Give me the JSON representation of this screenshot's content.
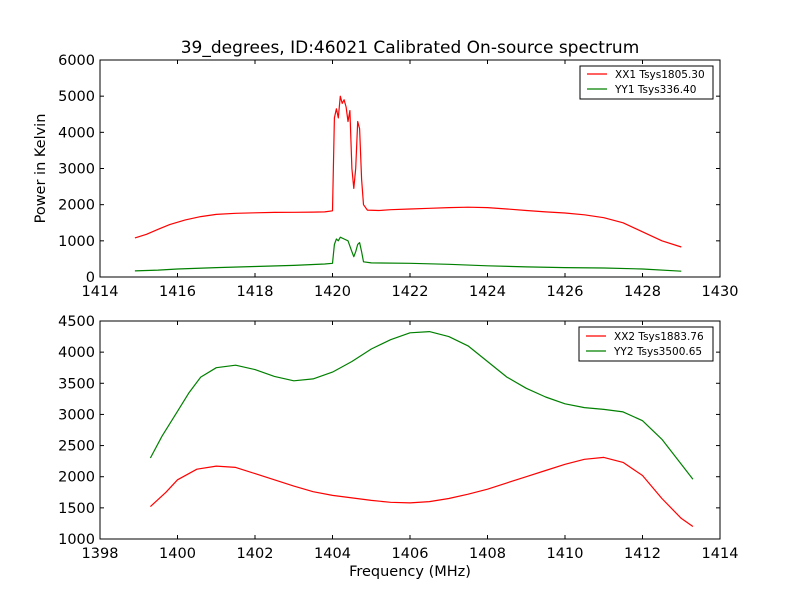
{
  "chart_data": [
    {
      "type": "line",
      "title": "39_degrees, ID:46021 Calibrated On-source spectrum",
      "xlabel": "",
      "ylabel": "Power in Kelvin",
      "xlim": [
        1414,
        1430
      ],
      "ylim": [
        0,
        6000
      ],
      "xticks": [
        1414,
        1416,
        1418,
        1420,
        1422,
        1424,
        1426,
        1428,
        1430
      ],
      "yticks": [
        0,
        1000,
        2000,
        3000,
        4000,
        5000,
        6000
      ],
      "legend_position": "top-right",
      "grid": false,
      "series": [
        {
          "name": "XX1 Tsys1805.30",
          "color": "#ff0000",
          "points": [
            [
              1414.9,
              1080
            ],
            [
              1415.2,
              1180
            ],
            [
              1415.5,
              1320
            ],
            [
              1415.8,
              1450
            ],
            [
              1416.2,
              1580
            ],
            [
              1416.6,
              1670
            ],
            [
              1417.0,
              1730
            ],
            [
              1417.5,
              1760
            ],
            [
              1418.0,
              1775
            ],
            [
              1418.5,
              1785
            ],
            [
              1419.0,
              1790
            ],
            [
              1419.5,
              1795
            ],
            [
              1419.8,
              1800
            ],
            [
              1420.0,
              1830
            ],
            [
              1420.05,
              4400
            ],
            [
              1420.1,
              4650
            ],
            [
              1420.15,
              4400
            ],
            [
              1420.2,
              5000
            ],
            [
              1420.25,
              4800
            ],
            [
              1420.3,
              4900
            ],
            [
              1420.35,
              4700
            ],
            [
              1420.4,
              4300
            ],
            [
              1420.45,
              4600
            ],
            [
              1420.5,
              3000
            ],
            [
              1420.55,
              2450
            ],
            [
              1420.6,
              3000
            ],
            [
              1420.65,
              4300
            ],
            [
              1420.7,
              4100
            ],
            [
              1420.75,
              2700
            ],
            [
              1420.8,
              2000
            ],
            [
              1420.9,
              1850
            ],
            [
              1421.2,
              1840
            ],
            [
              1421.5,
              1860
            ],
            [
              1422.0,
              1880
            ],
            [
              1422.5,
              1900
            ],
            [
              1423.0,
              1920
            ],
            [
              1423.5,
              1930
            ],
            [
              1424.0,
              1920
            ],
            [
              1424.5,
              1880
            ],
            [
              1425.0,
              1840
            ],
            [
              1425.5,
              1800
            ],
            [
              1426.0,
              1770
            ],
            [
              1426.5,
              1720
            ],
            [
              1427.0,
              1640
            ],
            [
              1427.5,
              1500
            ],
            [
              1428.0,
              1250
            ],
            [
              1428.5,
              1000
            ],
            [
              1429.0,
              830
            ]
          ]
        },
        {
          "name": "YY1 Tsys336.40",
          "color": "#008000",
          "points": [
            [
              1414.9,
              170
            ],
            [
              1415.5,
              190
            ],
            [
              1416.0,
              220
            ],
            [
              1417.0,
              260
            ],
            [
              1418.0,
              290
            ],
            [
              1419.0,
              320
            ],
            [
              1419.8,
              360
            ],
            [
              1420.0,
              380
            ],
            [
              1420.05,
              900
            ],
            [
              1420.1,
              1050
            ],
            [
              1420.15,
              1000
            ],
            [
              1420.2,
              1100
            ],
            [
              1420.3,
              1050
            ],
            [
              1420.4,
              1000
            ],
            [
              1420.5,
              700
            ],
            [
              1420.55,
              560
            ],
            [
              1420.6,
              700
            ],
            [
              1420.65,
              900
            ],
            [
              1420.7,
              950
            ],
            [
              1420.75,
              700
            ],
            [
              1420.8,
              420
            ],
            [
              1421.0,
              390
            ],
            [
              1422.0,
              380
            ],
            [
              1423.0,
              350
            ],
            [
              1424.0,
              310
            ],
            [
              1425.0,
              280
            ],
            [
              1426.0,
              260
            ],
            [
              1427.0,
              250
            ],
            [
              1428.0,
              220
            ],
            [
              1429.0,
              160
            ]
          ]
        }
      ]
    },
    {
      "type": "line",
      "title": "",
      "xlabel": "Frequency (MHz)",
      "ylabel": "",
      "xlim": [
        1398,
        1414
      ],
      "ylim": [
        1000,
        4500
      ],
      "xticks": [
        1398,
        1400,
        1402,
        1404,
        1406,
        1408,
        1410,
        1412,
        1414
      ],
      "yticks": [
        1000,
        1500,
        2000,
        2500,
        3000,
        3500,
        4000,
        4500
      ],
      "legend_position": "top-right",
      "grid": false,
      "series": [
        {
          "name": "XX2 Tsys1883.76",
          "color": "#ff0000",
          "points": [
            [
              1399.3,
              1520
            ],
            [
              1399.7,
              1750
            ],
            [
              1400.0,
              1950
            ],
            [
              1400.5,
              2120
            ],
            [
              1401.0,
              2170
            ],
            [
              1401.5,
              2150
            ],
            [
              1402.0,
              2050
            ],
            [
              1402.5,
              1950
            ],
            [
              1403.0,
              1850
            ],
            [
              1403.5,
              1760
            ],
            [
              1404.0,
              1700
            ],
            [
              1404.5,
              1660
            ],
            [
              1405.0,
              1620
            ],
            [
              1405.5,
              1590
            ],
            [
              1406.0,
              1580
            ],
            [
              1406.5,
              1600
            ],
            [
              1407.0,
              1650
            ],
            [
              1407.5,
              1720
            ],
            [
              1408.0,
              1800
            ],
            [
              1408.5,
              1900
            ],
            [
              1409.0,
              2000
            ],
            [
              1409.5,
              2100
            ],
            [
              1410.0,
              2200
            ],
            [
              1410.5,
              2280
            ],
            [
              1411.0,
              2310
            ],
            [
              1411.5,
              2230
            ],
            [
              1412.0,
              2020
            ],
            [
              1412.5,
              1650
            ],
            [
              1413.0,
              1330
            ],
            [
              1413.3,
              1200
            ]
          ]
        },
        {
          "name": "YY2 Tsys3500.65",
          "color": "#008000",
          "points": [
            [
              1399.3,
              2300
            ],
            [
              1399.6,
              2650
            ],
            [
              1400.0,
              3050
            ],
            [
              1400.3,
              3350
            ],
            [
              1400.6,
              3600
            ],
            [
              1401.0,
              3750
            ],
            [
              1401.5,
              3790
            ],
            [
              1402.0,
              3720
            ],
            [
              1402.5,
              3610
            ],
            [
              1403.0,
              3540
            ],
            [
              1403.5,
              3570
            ],
            [
              1404.0,
              3680
            ],
            [
              1404.5,
              3850
            ],
            [
              1405.0,
              4050
            ],
            [
              1405.5,
              4200
            ],
            [
              1406.0,
              4310
            ],
            [
              1406.5,
              4330
            ],
            [
              1407.0,
              4250
            ],
            [
              1407.5,
              4100
            ],
            [
              1408.0,
              3850
            ],
            [
              1408.5,
              3600
            ],
            [
              1409.0,
              3420
            ],
            [
              1409.5,
              3280
            ],
            [
              1410.0,
              3170
            ],
            [
              1410.5,
              3110
            ],
            [
              1411.0,
              3080
            ],
            [
              1411.5,
              3040
            ],
            [
              1412.0,
              2900
            ],
            [
              1412.5,
              2600
            ],
            [
              1413.0,
              2200
            ],
            [
              1413.3,
              1960
            ]
          ]
        }
      ]
    }
  ]
}
